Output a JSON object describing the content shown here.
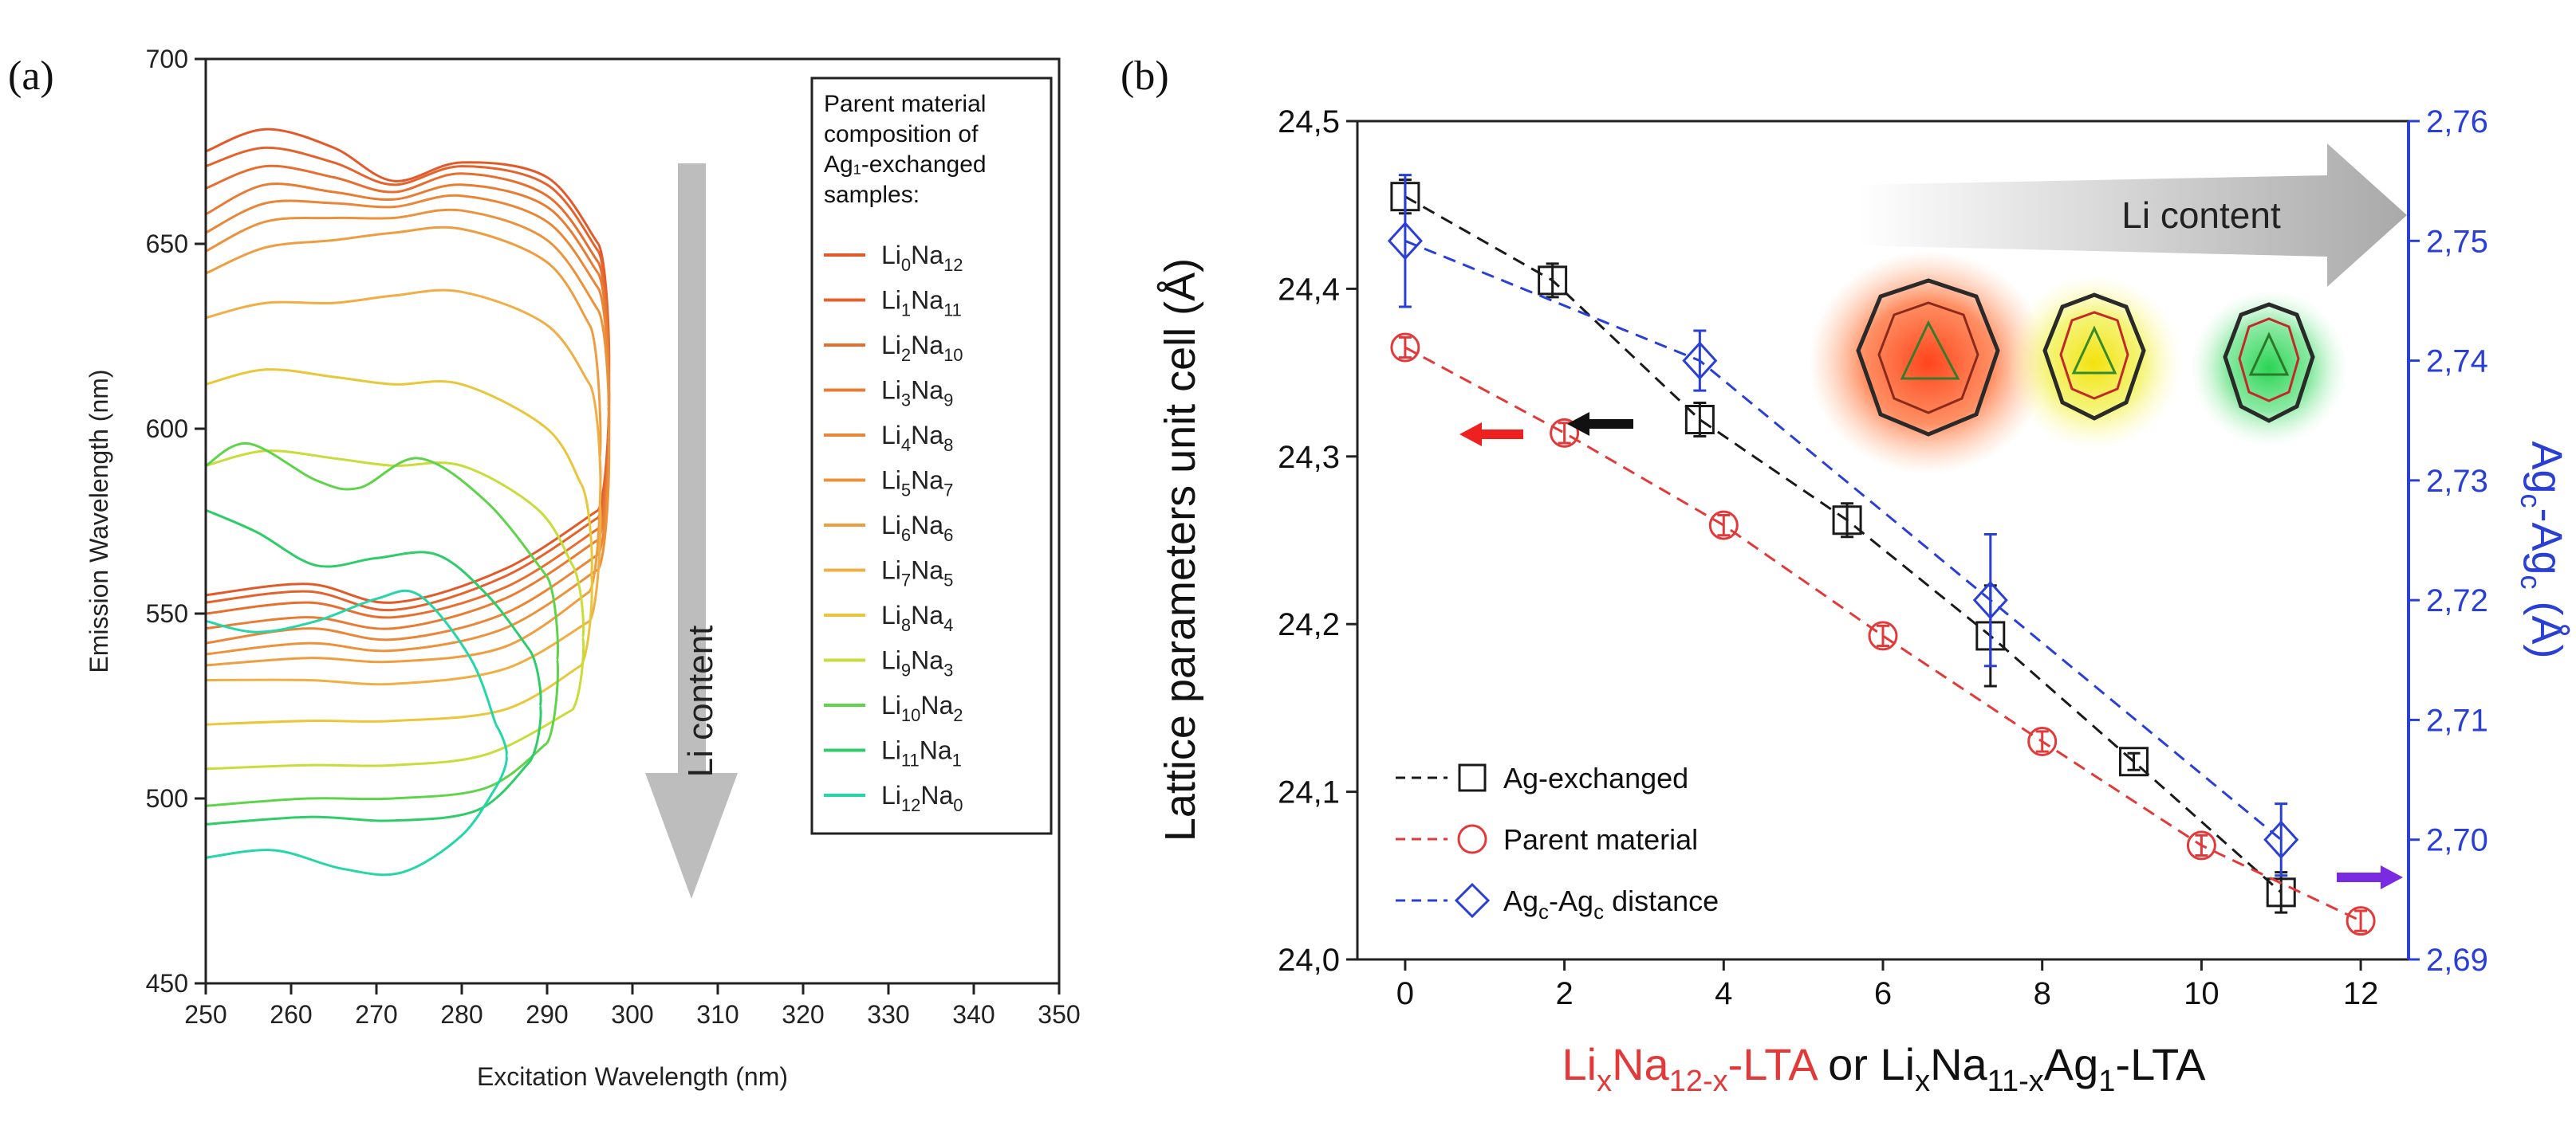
{
  "chart_data": [
    {
      "panel_label": "(a)",
      "type": "line",
      "xlabel": "Excitation Wavelength (nm)",
      "ylabel": "Emission Wavelength (nm)",
      "xlim": [
        250,
        350
      ],
      "ylim": [
        450,
        700
      ],
      "xticks": [
        "250",
        "260",
        "270",
        "280",
        "290",
        "300",
        "310",
        "320",
        "330",
        "340",
        "350"
      ],
      "yticks": [
        "450",
        "500",
        "550",
        "600",
        "650",
        "700"
      ],
      "legend": {
        "title": "Parent material composition of Ag1-exchanged samples:",
        "title_lines": [
          "Parent material",
          "composition of",
          "Ag₁-exchanged",
          "samples:"
        ],
        "placement": "top-right",
        "entries": [
          {
            "li": "0",
            "na": "12",
            "color": "#e25a2a"
          },
          {
            "li": "1",
            "na": "11",
            "color": "#e4632c"
          },
          {
            "li": "2",
            "na": "10",
            "color": "#e66f30"
          },
          {
            "li": "3",
            "na": "9",
            "color": "#e87c33"
          },
          {
            "li": "4",
            "na": "8",
            "color": "#ea8638"
          },
          {
            "li": "5",
            "na": "7",
            "color": "#ec923b"
          },
          {
            "li": "6",
            "na": "6",
            "color": "#ee9e40"
          },
          {
            "li": "7",
            "na": "5",
            "color": "#f0ae45"
          },
          {
            "li": "8",
            "na": "4",
            "color": "#e8c83a"
          },
          {
            "li": "9",
            "na": "3",
            "color": "#c8dc3a"
          },
          {
            "li": "10",
            "na": "2",
            "color": "#5fd44a"
          },
          {
            "li": "11",
            "na": "1",
            "color": "#2fcc6a"
          },
          {
            "li": "12",
            "na": "0",
            "color": "#25d6a8"
          }
        ]
      },
      "annotation": "Li content",
      "contours": [
        {
          "color": "#e25a2a",
          "top": [
            [
              250,
              675
            ],
            [
              257,
              681
            ],
            [
              265,
              676
            ],
            [
              272,
              667
            ],
            [
              280,
              672
            ],
            [
              290,
              668
            ],
            [
              296,
              650
            ]
          ],
          "bottom": [
            [
              250,
              555
            ],
            [
              262,
              558
            ],
            [
              272,
              553
            ],
            [
              285,
              562
            ],
            [
              296,
              578
            ]
          ]
        },
        {
          "color": "#e4632c",
          "top": [
            [
              250,
              671
            ],
            [
              257,
              676
            ],
            [
              265,
              672
            ],
            [
              272,
              666
            ],
            [
              280,
              671
            ],
            [
              290,
              666
            ],
            [
              296,
              648
            ]
          ],
          "bottom": [
            [
              250,
              553
            ],
            [
              262,
              556
            ],
            [
              272,
              551
            ],
            [
              285,
              560
            ],
            [
              296,
              576
            ]
          ]
        },
        {
          "color": "#e66f30",
          "top": [
            [
              250,
              665
            ],
            [
              257,
              671
            ],
            [
              265,
              668
            ],
            [
              272,
              664
            ],
            [
              280,
              669
            ],
            [
              290,
              663
            ],
            [
              296,
              645
            ]
          ],
          "bottom": [
            [
              250,
              550
            ],
            [
              262,
              553
            ],
            [
              272,
              549
            ],
            [
              285,
              557
            ],
            [
              296,
              573
            ]
          ]
        },
        {
          "color": "#e87c33",
          "top": [
            [
              250,
              658
            ],
            [
              257,
              666
            ],
            [
              265,
              664
            ],
            [
              272,
              662
            ],
            [
              280,
              666
            ],
            [
              290,
              660
            ],
            [
              296,
              642
            ]
          ],
          "bottom": [
            [
              250,
              546
            ],
            [
              262,
              549
            ],
            [
              272,
              546
            ],
            [
              285,
              554
            ],
            [
              296,
              570
            ]
          ]
        },
        {
          "color": "#ea8638",
          "top": [
            [
              250,
              653
            ],
            [
              257,
              661
            ],
            [
              265,
              661
            ],
            [
              272,
              660
            ],
            [
              280,
              663
            ],
            [
              290,
              656
            ],
            [
              296,
              638
            ]
          ],
          "bottom": [
            [
              250,
              542
            ],
            [
              262,
              546
            ],
            [
              272,
              543
            ],
            [
              285,
              550
            ],
            [
              296,
              566
            ]
          ]
        },
        {
          "color": "#ec923b",
          "top": [
            [
              250,
              648
            ],
            [
              257,
              656
            ],
            [
              265,
              657
            ],
            [
              272,
              657
            ],
            [
              280,
              659
            ],
            [
              290,
              651
            ],
            [
              296,
              632
            ]
          ],
          "bottom": [
            [
              250,
              539
            ],
            [
              262,
              542
            ],
            [
              272,
              540
            ],
            [
              285,
              546
            ],
            [
              296,
              562
            ]
          ]
        },
        {
          "color": "#ee9e40",
          "top": [
            [
              250,
              642
            ],
            [
              257,
              649
            ],
            [
              265,
              651
            ],
            [
              272,
              653
            ],
            [
              280,
              654
            ],
            [
              290,
              645
            ],
            [
              295,
              628
            ]
          ],
          "bottom": [
            [
              250,
              536
            ],
            [
              262,
              538
            ],
            [
              272,
              537
            ],
            [
              285,
              541
            ],
            [
              295,
              556
            ]
          ]
        },
        {
          "color": "#f0ae45",
          "top": [
            [
              250,
              630
            ],
            [
              257,
              634
            ],
            [
              265,
              634
            ],
            [
              272,
              636
            ],
            [
              280,
              637
            ],
            [
              290,
              628
            ],
            [
              295,
              612
            ]
          ],
          "bottom": [
            [
              250,
              532
            ],
            [
              262,
              532
            ],
            [
              272,
              531
            ],
            [
              285,
              535
            ],
            [
              295,
              548
            ]
          ]
        },
        {
          "color": "#e8c83a",
          "top": [
            [
              250,
              612
            ],
            [
              257,
              616
            ],
            [
              265,
              614
            ],
            [
              272,
              612
            ],
            [
              280,
              612
            ],
            [
              290,
              600
            ],
            [
              294,
              585
            ]
          ],
          "bottom": [
            [
              250,
              520
            ],
            [
              262,
              521
            ],
            [
              272,
              521
            ],
            [
              285,
              524
            ],
            [
              294,
              536
            ]
          ]
        },
        {
          "color": "#c8dc3a",
          "top": [
            [
              250,
              590
            ],
            [
              257,
              594
            ],
            [
              265,
              592
            ],
            [
              272,
              590
            ],
            [
              280,
              590
            ],
            [
              289,
              578
            ],
            [
              293,
              563
            ]
          ],
          "bottom": [
            [
              250,
              508
            ],
            [
              262,
              509
            ],
            [
              272,
              509
            ],
            [
              283,
              512
            ],
            [
              293,
              524
            ]
          ]
        },
        {
          "color": "#5fd44a",
          "top": [
            [
              250,
              590
            ],
            [
              255,
              596
            ],
            [
              263,
              586
            ],
            [
              268,
              584
            ],
            [
              275,
              592
            ],
            [
              283,
              580
            ],
            [
              290,
              560
            ]
          ],
          "bottom": [
            [
              250,
              498
            ],
            [
              262,
              500
            ],
            [
              272,
              500
            ],
            [
              283,
              503
            ],
            [
              290,
              515
            ]
          ]
        },
        {
          "color": "#2fcc6a",
          "top": [
            [
              250,
              578
            ],
            [
              256,
              572
            ],
            [
              263,
              563
            ],
            [
              270,
              565
            ],
            [
              277,
              566
            ],
            [
              283,
              555
            ],
            [
              288,
              540
            ]
          ],
          "bottom": [
            [
              250,
              493
            ],
            [
              262,
              495
            ],
            [
              272,
              494
            ],
            [
              282,
              497
            ],
            [
              288,
              510
            ]
          ]
        },
        {
          "color": "#25d6a8",
          "top": [
            [
              250,
              548
            ],
            [
              256,
              545
            ],
            [
              263,
              548
            ],
            [
              270,
              554
            ],
            [
              275,
              555
            ],
            [
              281,
              538
            ],
            [
              284,
              520
            ]
          ],
          "bottom": [
            [
              250,
              484
            ],
            [
              258,
              486
            ],
            [
              266,
              481
            ],
            [
              273,
              480
            ],
            [
              280,
              490
            ],
            [
              284,
              503
            ]
          ]
        }
      ]
    },
    {
      "panel_label": "(b)",
      "type": "line",
      "ylabel": "Lattice parameters unit cell (Å)",
      "y2label": {
        "ag1": "Ag",
        "sub1": "c",
        "mid": "-Ag",
        "sub2": "c",
        "unit": " (Å)"
      },
      "xlabel": {
        "li": "Li",
        "x1": "x",
        "na": "Na",
        "sub_na": "12-x",
        "lta": "-LTA",
        "or": " or Li",
        "x2": "x",
        "na2": "Na",
        "sub_na2": "11-x",
        "ag": "Ag",
        "sub_ag": "1",
        "lta2": "-LTA"
      },
      "xlim": [
        -0.6,
        12.6
      ],
      "ylim": [
        24.0,
        24.5
      ],
      "y2lim": [
        2.69,
        2.76
      ],
      "xticks": [
        "0",
        "2",
        "4",
        "6",
        "8",
        "10",
        "12"
      ],
      "yticks": [
        "24,0",
        "24,1",
        "24,2",
        "24,3",
        "24,4",
        "24,5"
      ],
      "y2ticks": [
        "2,69",
        "2,70",
        "2,71",
        "2,72",
        "2,73",
        "2,74",
        "2,75",
        "2,76"
      ],
      "annotation": "Li content",
      "series": [
        {
          "name": "Ag-exchanged",
          "color": "#1a1a1a",
          "marker": "square",
          "axis": "left",
          "x": [
            0,
            1.85,
            3.7,
            5.55,
            7.35,
            9.15,
            11
          ],
          "y": [
            24.455,
            24.405,
            24.322,
            24.262,
            24.193,
            24.118,
            24.04
          ],
          "err": [
            0.01,
            0.01,
            0.01,
            0.01,
            0.03,
            0.005,
            0.012
          ]
        },
        {
          "name": "Parent material",
          "color": "#e23a3a",
          "marker": "circle",
          "axis": "left",
          "x": [
            0,
            2,
            4,
            6,
            8,
            10,
            12
          ],
          "y": [
            24.365,
            24.314,
            24.259,
            24.193,
            24.13,
            24.068,
            24.023
          ],
          "err": [
            0.006,
            0.006,
            0.006,
            0.006,
            0.006,
            0.006,
            0.006
          ]
        },
        {
          "name": "Ag_c-Ag_c distance",
          "color": "#2a3fd6",
          "marker": "diamond",
          "axis": "right",
          "x": [
            0,
            3.7,
            7.35,
            11
          ],
          "y": [
            2.75,
            2.74,
            2.72,
            2.7
          ],
          "err": [
            0.0055,
            0.0025,
            0.0055,
            0.003
          ]
        }
      ],
      "legend_entries": [
        {
          "label": "Ag-exchanged"
        },
        {
          "label": "Parent material"
        },
        {
          "pre": "Ag",
          "sub1": "c",
          "mid": "-Ag",
          "sub2": "c",
          "post": " distance"
        }
      ],
      "legend_placement": "bottom-left"
    }
  ]
}
